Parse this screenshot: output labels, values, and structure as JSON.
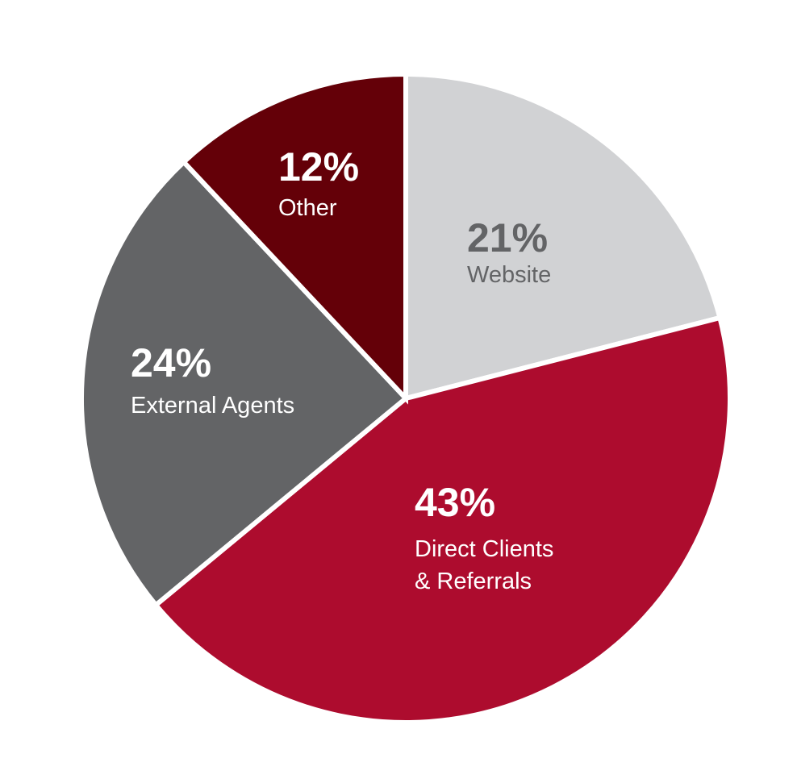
{
  "chart_data": {
    "type": "pie",
    "start_angle_deg": 0,
    "direction": "clockwise",
    "slices": [
      {
        "label": [
          "Website"
        ],
        "percent_label": "21%",
        "value": 21,
        "color": "#d1d2d4",
        "text_color": "#636466"
      },
      {
        "label": [
          "Direct Clients",
          "& Referrals"
        ],
        "percent_label": "43%",
        "value": 43,
        "color": "#ad0c2e",
        "text_color": "#ffffff"
      },
      {
        "label": [
          "External Agents"
        ],
        "percent_label": "24%",
        "value": 24,
        "color": "#636466",
        "text_color": "#ffffff"
      },
      {
        "label": [
          "Other"
        ],
        "percent_label": "12%",
        "value": 12,
        "color": "#640008",
        "text_color": "#ffffff"
      }
    ]
  }
}
